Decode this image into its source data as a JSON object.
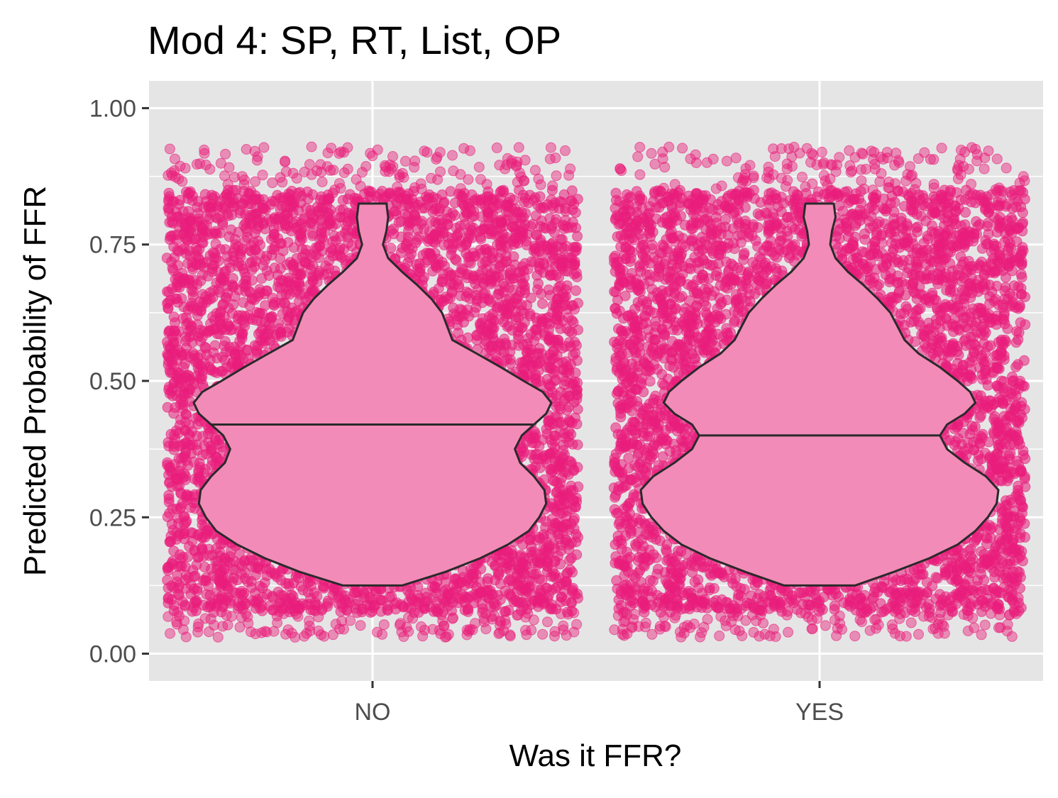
{
  "chart_data": {
    "type": "violin",
    "title": "Mod 4: SP, RT, List, OP",
    "xlabel": "Was it FFR?",
    "ylabel": "Predicted Probability of FFR",
    "categories": [
      "NO",
      "YES"
    ],
    "ylim": [
      -0.05,
      1.05
    ],
    "yticks": [
      0.0,
      0.25,
      0.5,
      0.75,
      1.0
    ],
    "ytick_labels": [
      "0.00",
      "0.25",
      "0.50",
      "0.75",
      "1.00"
    ],
    "grid": true,
    "legend": "none",
    "colors": {
      "panel_bg": "#e5e5e5",
      "grid": "#ffffff",
      "points": "#e91e7b",
      "violin_fill": "#f28bb8",
      "violin_outline": "#2a2a2a",
      "axis_text": "#4d4d4d"
    },
    "jitter_points": {
      "range": [
        0.03,
        0.93
      ]
    },
    "violins": [
      {
        "category": "NO",
        "median": 0.42,
        "min": 0.125,
        "max": 0.825,
        "density": [
          [
            0.125,
            0.17
          ],
          [
            0.15,
            0.42
          ],
          [
            0.175,
            0.62
          ],
          [
            0.2,
            0.78
          ],
          [
            0.225,
            0.9
          ],
          [
            0.25,
            0.96
          ],
          [
            0.275,
            1.0
          ],
          [
            0.3,
            0.99
          ],
          [
            0.325,
            0.93
          ],
          [
            0.35,
            0.85
          ],
          [
            0.375,
            0.82
          ],
          [
            0.4,
            0.86
          ],
          [
            0.42,
            0.93
          ],
          [
            0.44,
            1.0
          ],
          [
            0.46,
            1.03
          ],
          [
            0.48,
            0.98
          ],
          [
            0.5,
            0.87
          ],
          [
            0.525,
            0.74
          ],
          [
            0.55,
            0.6
          ],
          [
            0.575,
            0.46
          ],
          [
            0.6,
            0.43
          ],
          [
            0.625,
            0.4
          ],
          [
            0.65,
            0.34
          ],
          [
            0.675,
            0.26
          ],
          [
            0.7,
            0.17
          ],
          [
            0.725,
            0.09
          ],
          [
            0.75,
            0.06
          ],
          [
            0.775,
            0.08
          ],
          [
            0.8,
            0.09
          ],
          [
            0.825,
            0.08
          ]
        ]
      },
      {
        "category": "YES",
        "median": 0.4,
        "min": 0.125,
        "max": 0.825,
        "density": [
          [
            0.125,
            0.2
          ],
          [
            0.15,
            0.42
          ],
          [
            0.175,
            0.62
          ],
          [
            0.2,
            0.78
          ],
          [
            0.225,
            0.88
          ],
          [
            0.25,
            0.95
          ],
          [
            0.275,
            1.0
          ],
          [
            0.3,
            1.01
          ],
          [
            0.325,
            0.94
          ],
          [
            0.35,
            0.82
          ],
          [
            0.375,
            0.72
          ],
          [
            0.4,
            0.68
          ],
          [
            0.42,
            0.72
          ],
          [
            0.44,
            0.82
          ],
          [
            0.46,
            0.88
          ],
          [
            0.48,
            0.85
          ],
          [
            0.5,
            0.78
          ],
          [
            0.525,
            0.68
          ],
          [
            0.55,
            0.56
          ],
          [
            0.575,
            0.48
          ],
          [
            0.6,
            0.44
          ],
          [
            0.625,
            0.4
          ],
          [
            0.65,
            0.33
          ],
          [
            0.675,
            0.25
          ],
          [
            0.7,
            0.16
          ],
          [
            0.725,
            0.09
          ],
          [
            0.75,
            0.06
          ],
          [
            0.775,
            0.07
          ],
          [
            0.8,
            0.09
          ],
          [
            0.825,
            0.08
          ]
        ]
      }
    ]
  }
}
